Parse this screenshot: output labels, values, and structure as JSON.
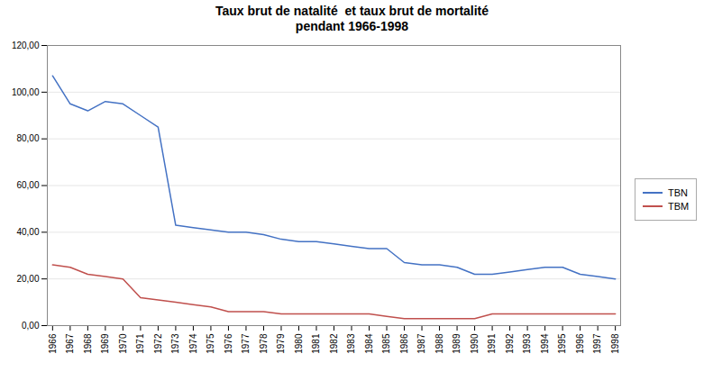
{
  "chart_data": {
    "type": "line",
    "title": "Taux brut de natalité  et taux brut de mortalité",
    "subtitle": "pendant 1966-1998",
    "x": [
      1966,
      1967,
      1968,
      1969,
      1970,
      1971,
      1972,
      1973,
      1974,
      1975,
      1976,
      1977,
      1978,
      1979,
      1980,
      1981,
      1982,
      1983,
      1984,
      1985,
      1986,
      1987,
      1988,
      1989,
      1990,
      1991,
      1992,
      1993,
      1994,
      1995,
      1996,
      1997,
      1998
    ],
    "series": [
      {
        "name": "TBN",
        "color": "#4472C4",
        "values": [
          107,
          95,
          92,
          96,
          95,
          90,
          85,
          43,
          42,
          41,
          40,
          40,
          39,
          37,
          36,
          36,
          35,
          34,
          33,
          33,
          27,
          26,
          26,
          25,
          22,
          22,
          23,
          24,
          25,
          25,
          22,
          21,
          20
        ]
      },
      {
        "name": "TBM",
        "color": "#C0504D",
        "values": [
          26,
          25,
          22,
          21,
          20,
          12,
          11,
          10,
          9,
          8,
          6,
          6,
          6,
          5,
          5,
          5,
          5,
          5,
          5,
          4,
          3,
          3,
          3,
          3,
          3,
          5,
          5,
          5,
          5,
          5,
          5,
          5,
          5
        ]
      }
    ],
    "xlim": [
      1965.7,
      1998.3
    ],
    "xticks": [
      1966,
      1967,
      1968,
      1969,
      1970,
      1971,
      1972,
      1973,
      1974,
      1975,
      1976,
      1977,
      1978,
      1979,
      1980,
      1981,
      1982,
      1983,
      1984,
      1985,
      1986,
      1987,
      1988,
      1989,
      1990,
      1991,
      1992,
      1993,
      1994,
      1995,
      1996,
      1997,
      1998
    ],
    "ylim": [
      0,
      120
    ],
    "yticks": [
      {
        "value": 0,
        "label": "0,00"
      },
      {
        "value": 20,
        "label": "20,00"
      },
      {
        "value": 40,
        "label": "40,00"
      },
      {
        "value": 60,
        "label": "60,00"
      },
      {
        "value": 80,
        "label": "80,00"
      },
      {
        "value": 100,
        "label": "100,00"
      },
      {
        "value": 120,
        "label": "120,00"
      }
    ],
    "grid": true,
    "legend": "right"
  }
}
